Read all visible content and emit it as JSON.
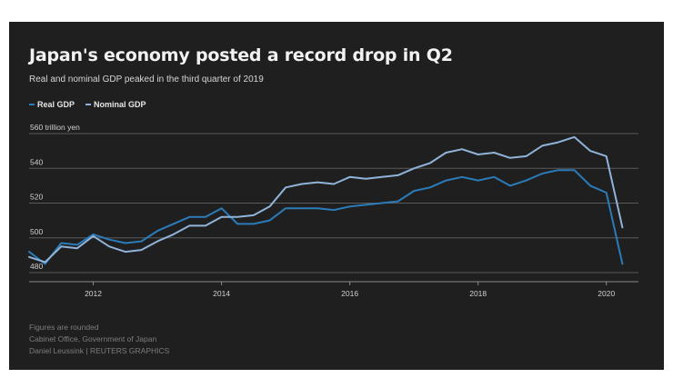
{
  "chart_data": {
    "type": "line",
    "title": "Japan's economy posted a record drop in Q2",
    "subtitle": "Real and nominal GDP peaked in the third quarter of 2019",
    "y_unit_label": "560 trillion yen",
    "ylim": [
      480,
      560
    ],
    "y_ticks": [
      {
        "value": 480,
        "label": "480"
      },
      {
        "value": 500,
        "label": "500"
      },
      {
        "value": 520,
        "label": "520"
      },
      {
        "value": 540,
        "label": "540"
      },
      {
        "value": 560,
        "label": "560 trillion yen"
      }
    ],
    "xlim": [
      2011.0,
      2020.5
    ],
    "x_ticks": [
      {
        "value": 2012,
        "label": "2012"
      },
      {
        "value": 2014,
        "label": "2014"
      },
      {
        "value": 2016,
        "label": "2016"
      },
      {
        "value": 2018,
        "label": "2018"
      },
      {
        "value": 2020,
        "label": "2020"
      }
    ],
    "grid": true,
    "legend_position": "top-left",
    "x": [
      2011.0,
      2011.25,
      2011.5,
      2011.75,
      2012.0,
      2012.25,
      2012.5,
      2012.75,
      2013.0,
      2013.25,
      2013.5,
      2013.75,
      2014.0,
      2014.25,
      2014.5,
      2014.75,
      2015.0,
      2015.25,
      2015.5,
      2015.75,
      2016.0,
      2016.25,
      2016.5,
      2016.75,
      2017.0,
      2017.25,
      2017.5,
      2017.75,
      2018.0,
      2018.25,
      2018.5,
      2018.75,
      2019.0,
      2019.25,
      2019.5,
      2019.75,
      2020.0,
      2020.25
    ],
    "series": [
      {
        "name": "Real GDP",
        "color": "#2b7bb9",
        "values": [
          492,
          485,
          497,
          496,
          502,
          499,
          497,
          498,
          504,
          508,
          512,
          512,
          517,
          508,
          508,
          510,
          517,
          517,
          517,
          516,
          518,
          519,
          520,
          521,
          527,
          529,
          533,
          535,
          533,
          535,
          530,
          533,
          537,
          539,
          539,
          530,
          526,
          485
        ]
      },
      {
        "name": "Nominal GDP",
        "color": "#8fb3d9",
        "values": [
          489,
          486,
          495,
          494,
          501,
          495,
          492,
          493,
          498,
          502,
          507,
          507,
          512,
          512,
          513,
          518,
          529,
          531,
          532,
          531,
          535,
          534,
          535,
          536,
          540,
          543,
          549,
          551,
          548,
          549,
          546,
          547,
          553,
          555,
          558,
          550,
          547,
          506
        ]
      }
    ]
  },
  "footer": {
    "note": "Figures are rounded",
    "source": "Cabinet Office, Government of Japan",
    "credit": "Daniel Leussink   | REUTERS GRAPHICS"
  }
}
